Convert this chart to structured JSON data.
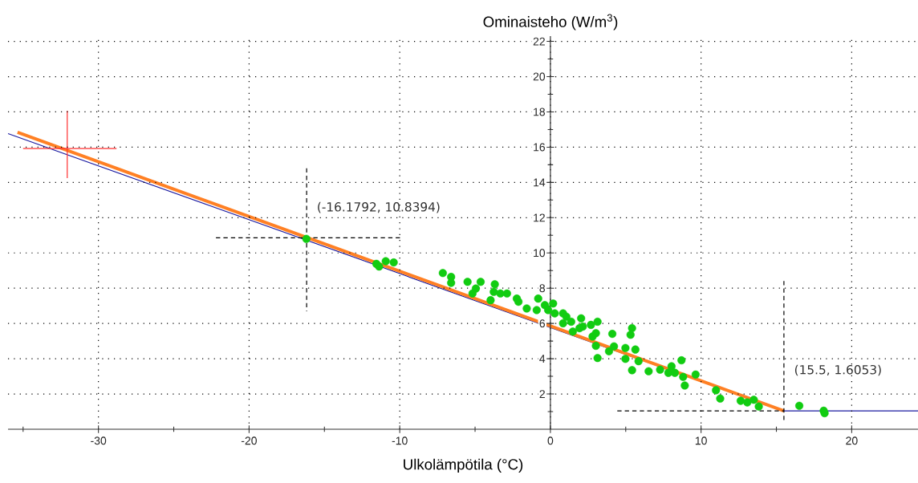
{
  "chart_data": {
    "type": "line",
    "xlabel": "Ulkolämpötila (°C)",
    "ylabel": "Ominaisteho (W/m$^{3}$)",
    "xlim": [
      -36,
      24.4
    ],
    "ylim": [
      0,
      22.3
    ],
    "xticks": [
      {
        "value": -35,
        "label": null
      },
      -30,
      {
        "value": -25,
        "label": null
      },
      -20,
      {
        "value": -15,
        "label": null
      },
      -10,
      {
        "value": -5,
        "label": null
      },
      0,
      {
        "value": 5,
        "label": null
      },
      10,
      {
        "value": 15,
        "label": null
      },
      20
    ],
    "yticks": [
      {
        "value": 1,
        "label": null
      },
      2,
      {
        "value": 3,
        "label": null
      },
      4,
      {
        "value": 5,
        "label": null
      },
      6,
      {
        "value": 7,
        "label": null
      },
      8,
      {
        "value": 9,
        "label": null
      },
      10,
      {
        "value": 11,
        "label": null
      },
      12,
      {
        "value": 13,
        "label": null
      },
      14,
      {
        "value": 15,
        "label": null
      },
      16,
      {
        "value": 17,
        "label": null
      },
      18,
      {
        "value": 19,
        "label": null
      },
      20,
      {
        "value": 21,
        "label": null
      },
      22
    ],
    "grid": true,
    "line_style": "solid",
    "annotations": [
      {
        "text": "(-16.1792, 10.8394)",
        "x": -16.1792,
        "y": 10.8394
      },
      {
        "text": "(15.5, 1.6053)",
        "x": 15.5,
        "y": 1.6053
      }
    ],
    "series": [
      {
        "marker": "none",
        "color": "#1a1aa0",
        "x": [
          -36,
          15.5,
          24.4
        ],
        "values": [
          16.77,
          1.04,
          1.04
        ]
      },
      {
        "type": "scatter",
        "marker": "circle",
        "color": "#11cc11",
        "x": [
          -16.2,
          -11.55,
          -11.37,
          -10.93,
          -10.4,
          -7.14,
          -6.59,
          -6.59,
          -5.5,
          -4.63,
          -4.95,
          -5.17,
          -3.69,
          -3.76,
          -3.32,
          -2.88,
          -3.97,
          -2.23,
          -2.12,
          -1.57,
          -0.81,
          -0.91,
          -0.37,
          -0.15,
          0.18,
          0.29,
          0.84,
          1.06,
          0.84,
          1.38,
          1.49,
          2.04,
          2.15,
          1.93,
          2.69,
          3.13,
          3.02,
          2.8,
          3.02,
          3.13,
          4.11,
          4.22,
          3.89,
          4.98,
          5.42,
          5.32,
          5.64,
          4.98,
          5.85,
          5.42,
          6.52,
          7.28,
          8.04,
          7.83,
          8.26,
          8.7,
          8.81,
          8.92,
          9.64,
          10.99,
          11.27,
          12.63,
          13.07,
          13.5,
          13.83,
          16.52,
          18.14,
          18.2
        ],
        "values": [
          10.8,
          9.38,
          9.23,
          9.53,
          9.46,
          8.86,
          8.64,
          8.3,
          8.36,
          8.36,
          7.98,
          7.7,
          8.22,
          7.79,
          7.7,
          7.7,
          7.32,
          7.41,
          7.23,
          6.85,
          7.41,
          6.76,
          7.04,
          6.76,
          7.13,
          6.57,
          6.57,
          6.38,
          6.01,
          6.1,
          5.54,
          6.29,
          5.82,
          5.73,
          5.92,
          6.1,
          5.45,
          5.26,
          4.73,
          4.04,
          5.41,
          4.7,
          4.42,
          4.61,
          5.73,
          5.36,
          4.52,
          3.99,
          3.86,
          3.35,
          3.29,
          3.38,
          3.57,
          3.2,
          3.2,
          3.91,
          2.97,
          2.48,
          3.1,
          2.21,
          1.74,
          1.61,
          1.52,
          1.67,
          1.29,
          1.33,
          1.05,
          0.91
        ]
      },
      {
        "marker": "none",
        "color": "#ff8024",
        "x": [
          -35.37,
          15.5
        ],
        "values": [
          16.84,
          1.04
        ]
      },
      {
        "type": "line",
        "marker": "none",
        "color": "#ff3030",
        "x": [
          -32.07,
          -32.07
        ],
        "values": [
          18.07,
          14.24
        ]
      },
      {
        "type": "line",
        "marker": "none",
        "color": "#ff3030",
        "x": [
          -35.0,
          -28.8
        ],
        "values": [
          15.92,
          15.92
        ]
      },
      {
        "type": "line",
        "marker": "none",
        "line_style": "dashed",
        "color": "#000000",
        "x": [
          -16.18,
          -16.18
        ],
        "values": [
          14.8,
          6.7
        ]
      },
      {
        "type": "line",
        "marker": "none",
        "line_style": "dashed",
        "color": "#000000",
        "x": [
          -22.2,
          -9.8
        ],
        "values": [
          10.86,
          10.86
        ]
      },
      {
        "type": "line",
        "marker": "none",
        "line_style": "dashed",
        "color": "#000000",
        "x": [
          15.5,
          15.5
        ],
        "values": [
          8.41,
          0.49
        ]
      },
      {
        "type": "line",
        "marker": "none",
        "line_style": "dashed",
        "color": "#000000",
        "x": [
          4.44,
          15.5
        ],
        "values": [
          1.04,
          1.04
        ]
      }
    ]
  }
}
